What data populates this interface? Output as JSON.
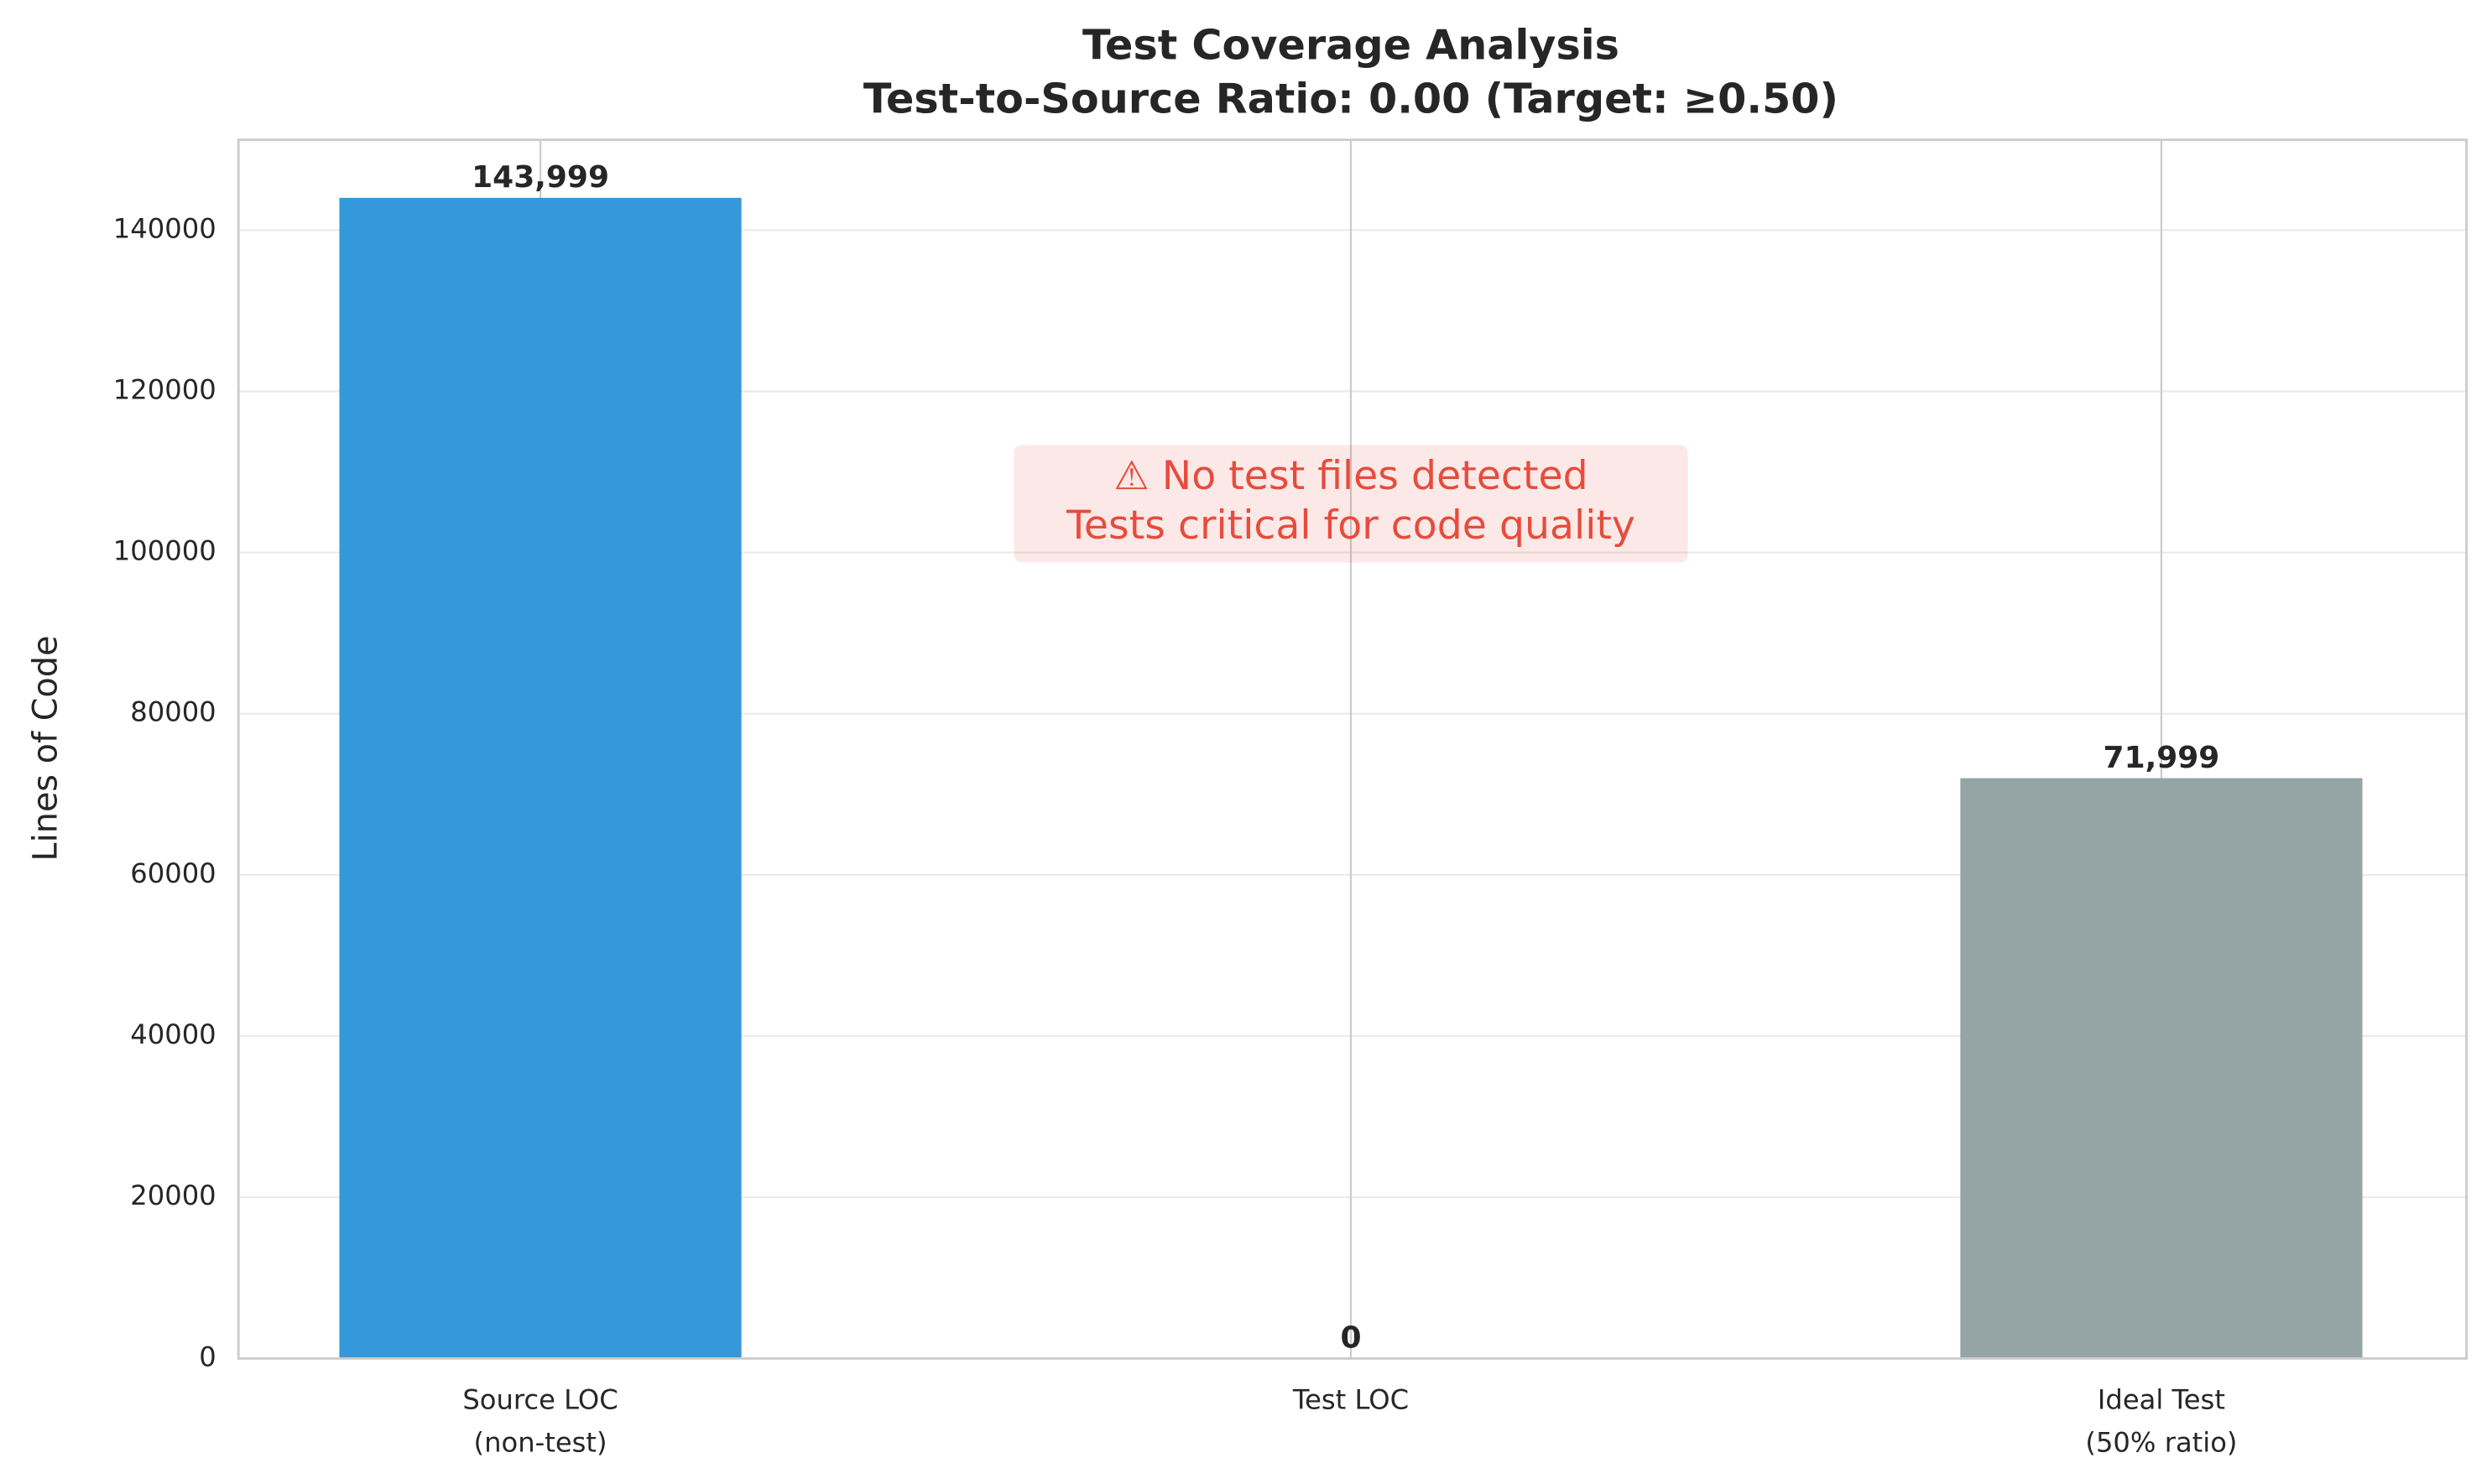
{
  "chart_data": {
    "type": "bar",
    "title": "Test Coverage Analysis",
    "subtitle": "Test-to-Source Ratio: 0.00 (Target: ≥0.50)",
    "y_label": "Lines of Code",
    "categories": [
      "Source LOC\n(non-test)",
      "Test LOC",
      "Ideal Test\n(50% ratio)"
    ],
    "values": [
      143999,
      0,
      71999
    ],
    "value_labels": [
      "143,999",
      "0",
      "71,999"
    ],
    "colors": [
      "#3498db",
      "#e74c3c",
      "#95a5a6"
    ],
    "ylim": [
      0,
      151200
    ],
    "yticks": [
      0,
      20000,
      40000,
      60000,
      80000,
      100000,
      120000,
      140000
    ],
    "grid": true,
    "annotation": [
      "⚠ No test files detected",
      "Tests critical for code quality"
    ]
  }
}
